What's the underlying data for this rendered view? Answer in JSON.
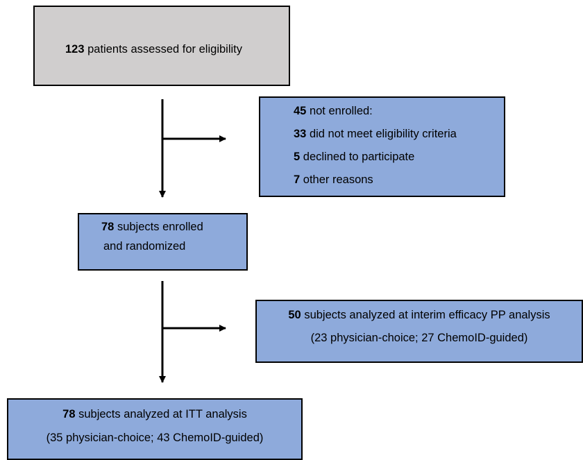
{
  "nodes": [
    {
      "lines": [
        {
          "bold": "123",
          "text": "patients assessed for eligibility"
        }
      ]
    },
    {
      "lines": [
        {
          "bold": "45",
          "text": "not enrolled:"
        },
        {
          "bold": "33",
          "text": "did not meet eligibility criteria"
        },
        {
          "bold": "5",
          "text": "declined to participate"
        },
        {
          "bold": "7",
          "text": "other reasons"
        }
      ]
    },
    {
      "lines": [
        {
          "bold": "78",
          "text": "subjects enrolled"
        },
        {
          "text": "and randomized"
        }
      ]
    },
    {
      "lines": [
        {
          "bold": "50",
          "text": "subjects analyzed at interim efficacy PP analysis"
        },
        {
          "text": "(23 physician-choice; 27 ChemoID-guided)"
        }
      ]
    },
    {
      "lines": [
        {
          "bold": "78",
          "text": "subjects analyzed at ITT analysis"
        },
        {
          "text": "(35 physician-choice; 43 ChemoID-guided)"
        }
      ]
    }
  ]
}
